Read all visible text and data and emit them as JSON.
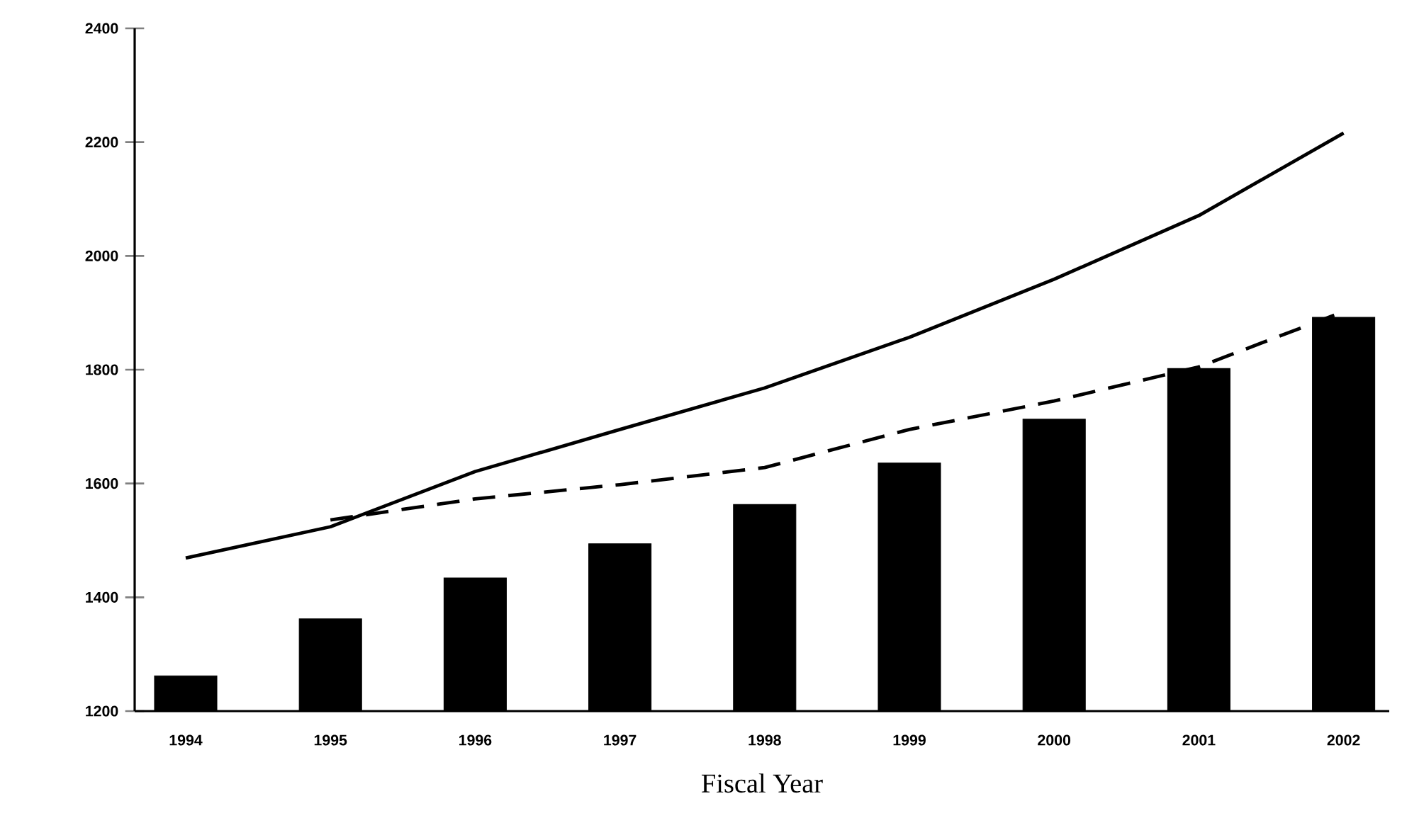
{
  "chart_data": {
    "type": "bar",
    "xlabel": "Fiscal Year",
    "categories": [
      "1994",
      "1995",
      "1996",
      "1997",
      "1998",
      "1999",
      "2000",
      "2001",
      "2002"
    ],
    "ylim": [
      1200,
      2400
    ],
    "yticks": [
      1200,
      1400,
      1600,
      1800,
      2000,
      2200,
      2400
    ],
    "grid": false,
    "series": [
      {
        "color": "#000000",
        "values": [
          1262,
          1362,
          1434,
          1494,
          1563,
          1636,
          1713,
          1802,
          1892
        ]
      },
      {
        "type": "line",
        "color": "#000000",
        "line_style": "solid",
        "values": [
          1469,
          1524,
          1621,
          1695,
          1768,
          1857,
          1959,
          2071,
          2216
        ]
      },
      {
        "type": "line",
        "color": "#000000",
        "line_style": "dashed",
        "values": [
          null,
          1536,
          1573,
          1598,
          1628,
          1695,
          1745,
          1805,
          1902
        ]
      }
    ]
  }
}
